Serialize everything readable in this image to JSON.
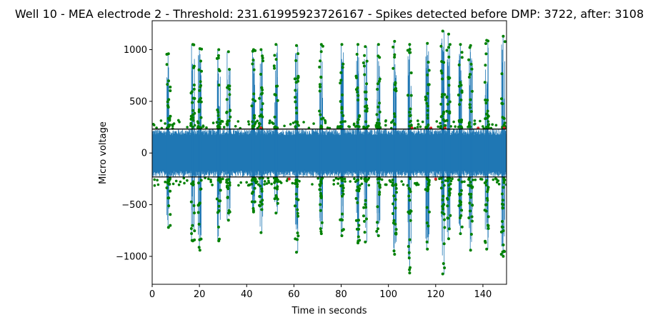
{
  "chart_data": {
    "type": "line",
    "title": "Well 10 - MEA electrode 2 - Threshold: 231.61995923726167 - Spikes detected before DMP: 3722, after: 3108",
    "xlabel": "Time in seconds",
    "ylabel": "Micro voltage",
    "xlim": [
      0,
      150
    ],
    "ylim": [
      -1270,
      1280
    ],
    "x_ticks": [
      0,
      20,
      40,
      60,
      80,
      100,
      120,
      140
    ],
    "y_ticks": [
      -1000,
      -500,
      0,
      500,
      1000
    ],
    "threshold": 231.61995923726167,
    "grid": false,
    "legend": "none",
    "signal_color": "#1f77b4",
    "threshold_color": "#000000",
    "spike_kept_color": "#008000",
    "spike_removed_color": "#d62728",
    "burst_events": [
      {
        "t": 6.9,
        "pos_peak": 960,
        "neg_peak": -720
      },
      {
        "t": 17.2,
        "pos_peak": 1050,
        "neg_peak": -850
      },
      {
        "t": 20.2,
        "pos_peak": 1010,
        "neg_peak": -940
      },
      {
        "t": 28.2,
        "pos_peak": 1000,
        "neg_peak": -850
      },
      {
        "t": 32.3,
        "pos_peak": 980,
        "neg_peak": -650
      },
      {
        "t": 42.9,
        "pos_peak": 1000,
        "neg_peak": -570
      },
      {
        "t": 46.1,
        "pos_peak": 1000,
        "neg_peak": -770
      },
      {
        "t": 52.4,
        "pos_peak": 1050,
        "neg_peak": -580
      },
      {
        "t": 61.1,
        "pos_peak": 1040,
        "neg_peak": -960
      },
      {
        "t": 71.6,
        "pos_peak": 1050,
        "neg_peak": -780
      },
      {
        "t": 80.3,
        "pos_peak": 1050,
        "neg_peak": -800
      },
      {
        "t": 87.1,
        "pos_peak": 1050,
        "neg_peak": -870
      },
      {
        "t": 90.2,
        "pos_peak": 1030,
        "neg_peak": -860
      },
      {
        "t": 95.8,
        "pos_peak": 1050,
        "neg_peak": -800
      },
      {
        "t": 102.6,
        "pos_peak": 1080,
        "neg_peak": -980
      },
      {
        "t": 109.0,
        "pos_peak": 1050,
        "neg_peak": -1160
      },
      {
        "t": 116.5,
        "pos_peak": 1060,
        "neg_peak": -930
      },
      {
        "t": 123.0,
        "pos_peak": 1180,
        "neg_peak": -1170
      },
      {
        "t": 125.5,
        "pos_peak": 1150,
        "neg_peak": -830
      },
      {
        "t": 130.5,
        "pos_peak": 1050,
        "neg_peak": -780
      },
      {
        "t": 134.8,
        "pos_peak": 1040,
        "neg_peak": -940
      },
      {
        "t": 141.6,
        "pos_peak": 1090,
        "neg_peak": -930
      },
      {
        "t": 148.6,
        "pos_peak": 1130,
        "neg_peak": -1000
      }
    ],
    "baseline_noise_amplitude": 230,
    "series": [
      {
        "name": "",
        "role": "voltage signal"
      },
      {
        "name": "",
        "role": "spikes kept after DMP"
      },
      {
        "name": "",
        "role": "spikes removed by DMP"
      }
    ]
  }
}
